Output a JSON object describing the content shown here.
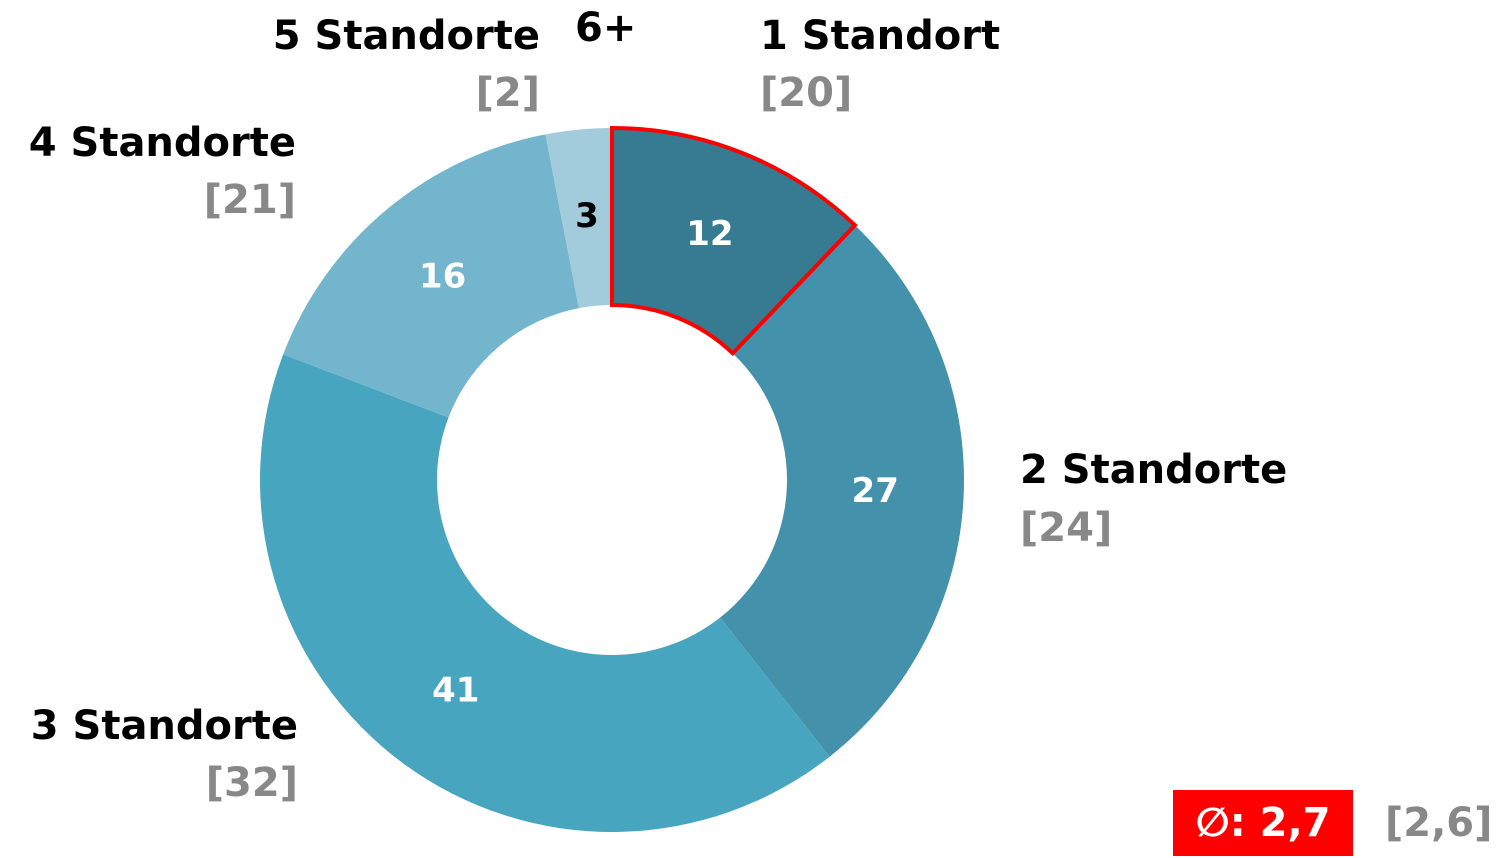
{
  "chart_data": {
    "type": "donut",
    "categories": [
      "1 Standort",
      "2 Standorte",
      "3 Standorte",
      "4 Standorte",
      "5 Standorte",
      "6+"
    ],
    "values": [
      12,
      27,
      41,
      16,
      3,
      0
    ],
    "colors": [
      "#367b91",
      "#4391aa",
      "#48a5bf",
      "#72b5cc",
      "#a2cbdb",
      "#c8e0ea"
    ],
    "highlight": 0,
    "highlight_color": "#ff0000",
    "previous": {
      "values": [
        20,
        24,
        32,
        21,
        2,
        null
      ],
      "value_labels": [
        "[20]",
        "[24]",
        "[32]",
        "[21]",
        "[2]",
        null
      ]
    },
    "average": "∅: 2,7",
    "previous_average": "[2,6]"
  }
}
